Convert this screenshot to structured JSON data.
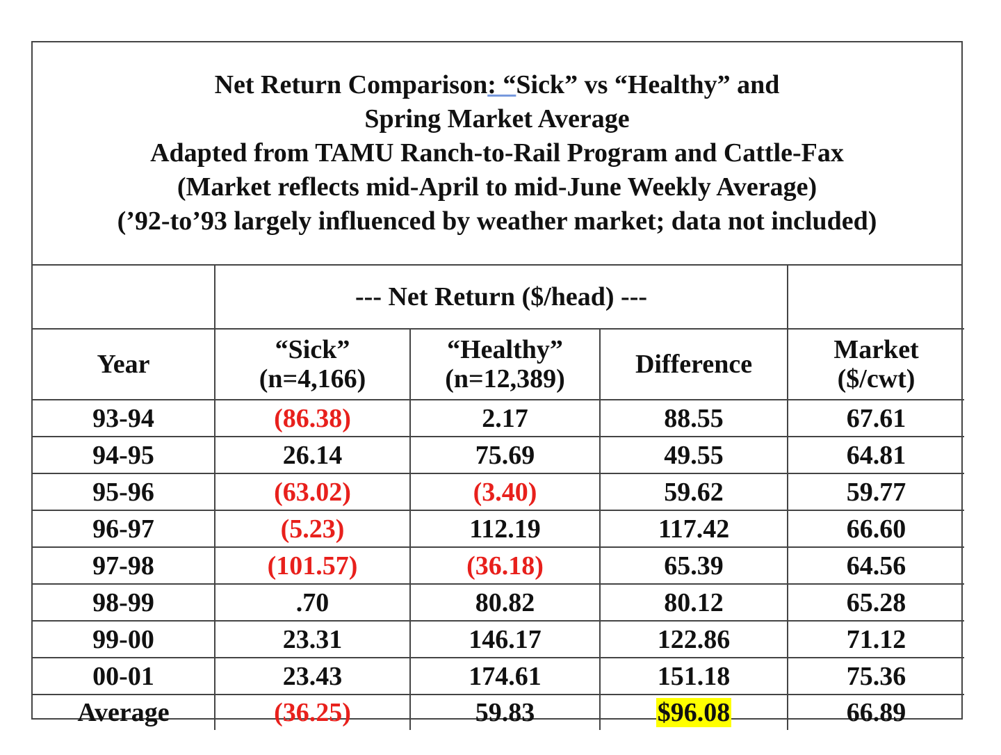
{
  "title": {
    "line1_pre": "Net Return Comparison",
    "line1_underlined": ":  “",
    "line1_post": "Sick” vs “Healthy” and",
    "line2": "Spring Market Average",
    "line3": "Adapted from TAMU Ranch-to-Rail Program and Cattle-Fax",
    "line4": "(Market reflects mid-April to mid-June Weekly Average)",
    "line5": "(’92-to’93 largely influenced by weather market; data not included)"
  },
  "group_header": "--- Net Return ($/head) ---",
  "headers": {
    "year": "Year",
    "sick_l1": "“Sick”",
    "sick_l2": "(n=4,166)",
    "healthy_l1": "“Healthy”",
    "healthy_l2": "(n=12,389)",
    "difference": "Difference",
    "market_l1": "Market",
    "market_l2": "($/cwt)"
  },
  "rows": [
    {
      "year": "93-94",
      "sick": "(86.38)",
      "healthy": "2.17",
      "difference": "88.55",
      "market": "67.61"
    },
    {
      "year": "94-95",
      "sick": "26.14",
      "healthy": "75.69",
      "difference": "49.55",
      "market": "64.81"
    },
    {
      "year": "95-96",
      "sick": "(63.02)",
      "healthy": "(3.40)",
      "difference": "59.62",
      "market": "59.77"
    },
    {
      "year": "96-97",
      "sick": "(5.23)",
      "healthy": "112.19",
      "difference": "117.42",
      "market": "66.60"
    },
    {
      "year": "97-98",
      "sick": "(101.57)",
      "healthy": "(36.18)",
      "difference": "65.39",
      "market": "64.56"
    },
    {
      "year": "98-99",
      "sick": ".70",
      "healthy": "80.82",
      "difference": "80.12",
      "market": "65.28"
    },
    {
      "year": "99-00",
      "sick": "23.31",
      "healthy": "146.17",
      "difference": "122.86",
      "market": "71.12"
    },
    {
      "year": "00-01",
      "sick": "23.43",
      "healthy": "174.61",
      "difference": "151.18",
      "market": "75.36"
    }
  ],
  "average": {
    "year": "Average",
    "sick": "(36.25)",
    "healthy": "59.83",
    "difference": "$96.08",
    "market": "66.89"
  },
  "colors": {
    "negative": "#e8201c",
    "highlight": "#ffff00",
    "border": "#444444"
  }
}
